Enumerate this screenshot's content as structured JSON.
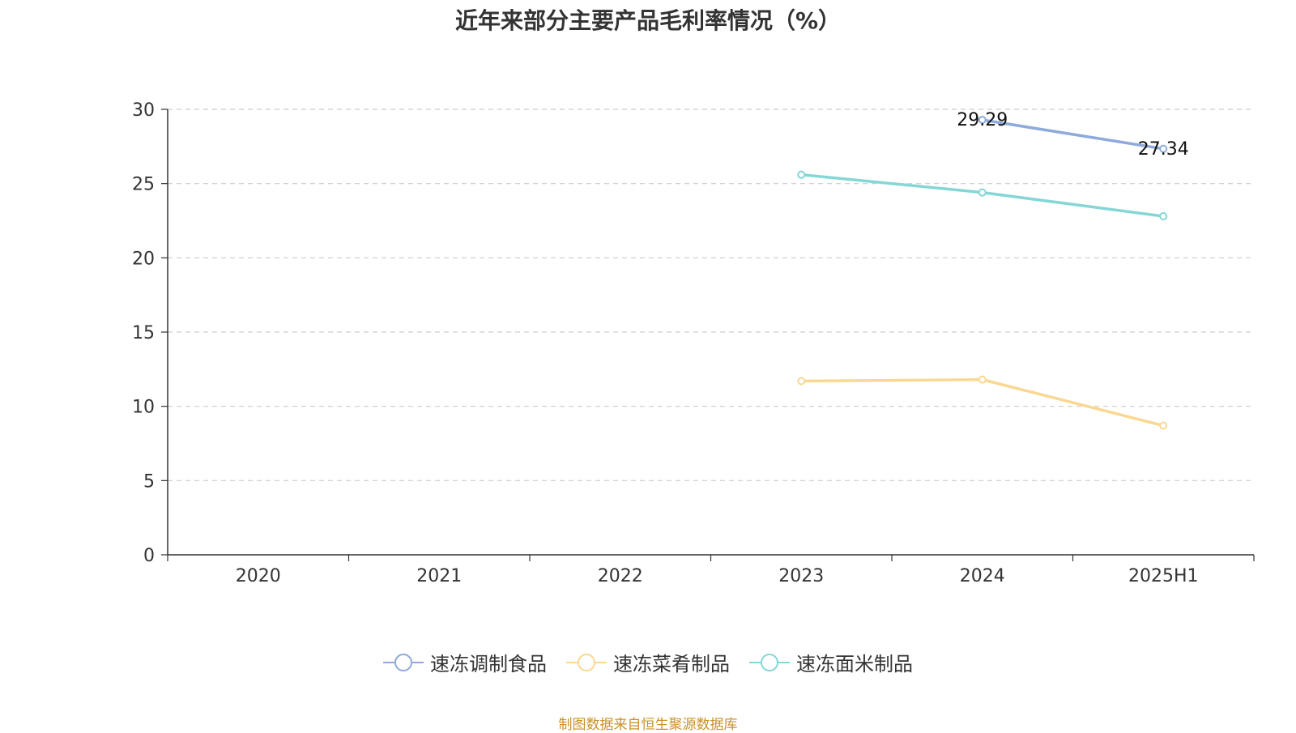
{
  "title": "近年来部分主要产品毛利率情况（%）",
  "source_note": "制图数据来自恒生聚源数据库",
  "chart_data": {
    "type": "line",
    "categories": [
      "2020",
      "2021",
      "2022",
      "2023",
      "2024",
      "2025H1"
    ],
    "ylim": [
      0,
      30
    ],
    "yticks": [
      0,
      5,
      10,
      15,
      20,
      25,
      30
    ],
    "grid": true,
    "legend_position": "bottom",
    "series": [
      {
        "name": "速冻调制食品",
        "color": "#8eaadb",
        "values": [
          null,
          null,
          null,
          null,
          29.29,
          27.34
        ],
        "show_labels": true
      },
      {
        "name": "速冻菜肴制品",
        "color": "#fad892",
        "values": [
          null,
          null,
          null,
          11.7,
          11.8,
          8.7
        ],
        "show_labels": false
      },
      {
        "name": "速冻面米制品",
        "color": "#85d6d6",
        "values": [
          null,
          null,
          null,
          25.6,
          24.4,
          22.8
        ],
        "show_labels": false
      }
    ]
  }
}
